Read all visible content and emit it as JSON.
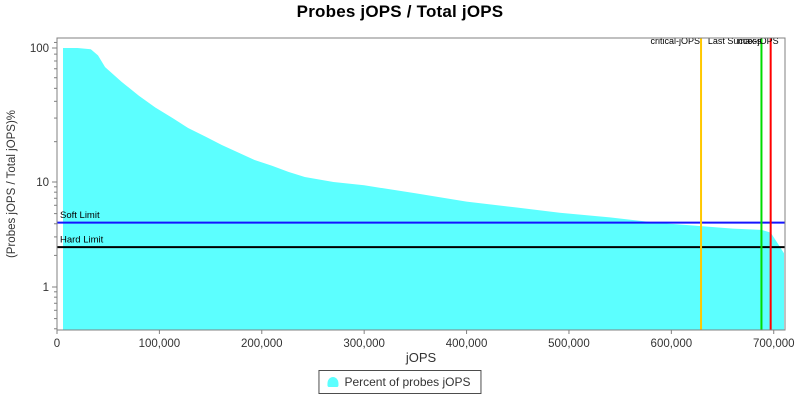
{
  "chart_data": {
    "type": "area",
    "title": "Probes jOPS / Total jOPS",
    "xlabel": "jOPS",
    "ylabel": "(Probes jOPS / Total jOPS)%",
    "x_axis": {
      "xlim": [
        0,
        711000
      ],
      "ticks": [
        {
          "value": 0,
          "label": "0"
        },
        {
          "value": 100000,
          "label": "100,000"
        },
        {
          "value": 200000,
          "label": "200,000"
        },
        {
          "value": 300000,
          "label": "300,000"
        },
        {
          "value": 400000,
          "label": "400,000"
        },
        {
          "value": 500000,
          "label": "500,000"
        },
        {
          "value": 600000,
          "label": "600,000"
        },
        {
          "value": 700000,
          "label": "700,000"
        }
      ]
    },
    "y_axis": {
      "scale": "log",
      "ylim": [
        0.39,
        118
      ],
      "major_ticks": [
        {
          "value": 100,
          "label": "100"
        },
        {
          "value": 10,
          "label": "10"
        },
        {
          "value": 1,
          "label": "1"
        }
      ]
    },
    "grid": "off",
    "legend_position": "bottom-center",
    "series": [
      {
        "name": "Percent of probes jOPS",
        "color": "#5CFFFF",
        "points": [
          [
            5900,
            100
          ],
          [
            20000,
            100
          ],
          [
            33000,
            98
          ],
          [
            40000,
            88
          ],
          [
            47000,
            72
          ],
          [
            63000,
            56
          ],
          [
            80000,
            44
          ],
          [
            96000,
            36
          ],
          [
            113000,
            30
          ],
          [
            128000,
            25.3
          ],
          [
            145000,
            21.8
          ],
          [
            161000,
            18.9
          ],
          [
            177000,
            16.6
          ],
          [
            193000,
            14.6
          ],
          [
            210000,
            13.2
          ],
          [
            226000,
            11.9
          ],
          [
            242000,
            10.9
          ],
          [
            270000,
            10.0
          ],
          [
            300000,
            9.3
          ],
          [
            350000,
            7.8
          ],
          [
            400000,
            6.5
          ],
          [
            450000,
            5.7
          ],
          [
            491000,
            5.1
          ],
          [
            540000,
            4.6
          ],
          [
            586000,
            4.1
          ],
          [
            629000,
            3.8
          ],
          [
            660000,
            3.6
          ],
          [
            688000,
            3.5
          ],
          [
            697000,
            3.3
          ],
          [
            705000,
            2.5
          ],
          [
            710000,
            2.1
          ]
        ]
      }
    ],
    "vertical_markers": [
      {
        "label": "critical-jOPS",
        "jops": 629000,
        "color": "#FFC800"
      },
      {
        "label": "Last Success",
        "jops": 688000,
        "color": "#00DC00"
      },
      {
        "label": "max-jOPS",
        "jops": 697000,
        "color": "#FF0000"
      }
    ],
    "horizontal_markers": [
      {
        "label": "Soft Limit",
        "percent": 4.1,
        "color": "#1414FF"
      },
      {
        "label": "Hard Limit",
        "percent": 2.4,
        "color": "#000000"
      }
    ],
    "legend": {
      "items": [
        {
          "label": "Percent of probes jOPS",
          "color": "#5CFFFF"
        }
      ]
    },
    "style": {
      "axis_line_color": "#808080",
      "axis_text_color": "#333333",
      "marker_text_color": "#000000"
    }
  }
}
